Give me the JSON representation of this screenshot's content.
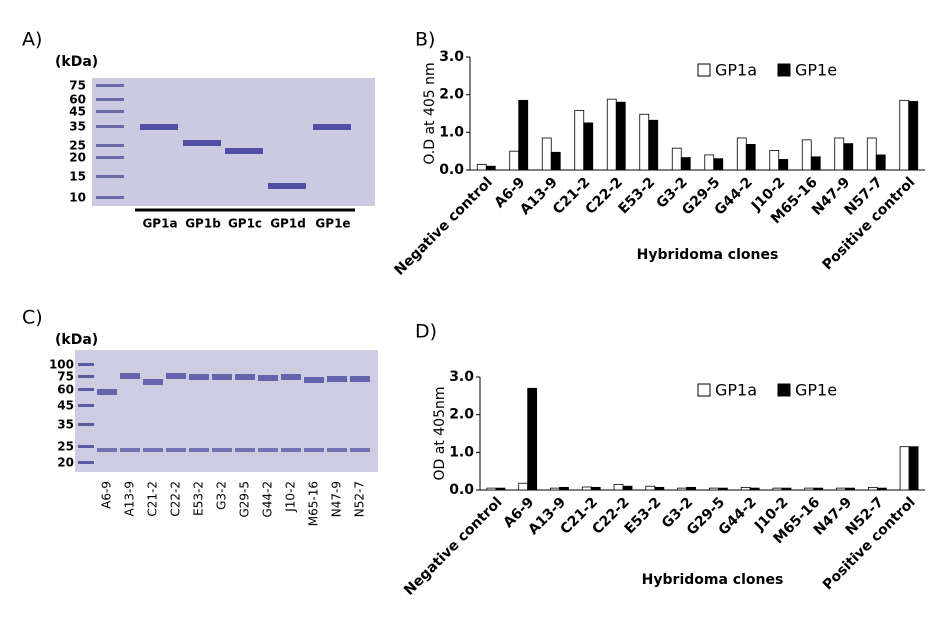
{
  "chart_data": [
    {
      "type": "bar",
      "panel_label": "B)",
      "ylabel": "O.D at 405 nm",
      "xlabel": "Hybridoma clones",
      "categories": [
        "Negative control",
        "A6-9",
        "A13-9",
        "C21-2",
        "C22-2",
        "E53-2",
        "G3-2",
        "G29-5",
        "G44-2",
        "J10-2",
        "M65-16",
        "N47-9",
        "N57-7",
        "Positive control"
      ],
      "series": [
        {
          "name": "GP1a",
          "color": "#ffffff",
          "values": [
            0.15,
            0.5,
            0.85,
            1.58,
            1.88,
            1.48,
            0.58,
            0.4,
            0.85,
            0.52,
            0.8,
            0.85,
            0.85,
            1.85
          ]
        },
        {
          "name": "GP1e",
          "color": "#000000",
          "values": [
            0.1,
            1.85,
            0.47,
            1.25,
            1.8,
            1.32,
            0.33,
            0.3,
            0.68,
            0.28,
            0.35,
            0.7,
            0.4,
            1.82
          ]
        }
      ],
      "ylim": [
        0,
        3
      ],
      "yticks": [
        {
          "value": 0,
          "label": "0.0"
        },
        {
          "value": 1,
          "label": "1.0"
        },
        {
          "value": 2,
          "label": "2.0"
        },
        {
          "value": 3,
          "label": "3.0"
        }
      ]
    },
    {
      "type": "bar",
      "panel_label": "D)",
      "ylabel": "OD at 405nm",
      "xlabel": "Hybridoma clones",
      "categories": [
        "Negative control",
        "A6-9",
        "A13-9",
        "C21-2",
        "C22-2",
        "E53-2",
        "G3-2",
        "G29-5",
        "G44-2",
        "J10-2",
        "M65-16",
        "N47-9",
        "N52-7",
        "Positive control"
      ],
      "series": [
        {
          "name": "GP1a",
          "color": "#ffffff",
          "values": [
            0.05,
            0.18,
            0.05,
            0.08,
            0.15,
            0.1,
            0.05,
            0.05,
            0.07,
            0.05,
            0.05,
            0.05,
            0.07,
            1.15
          ]
        },
        {
          "name": "GP1e",
          "color": "#000000",
          "values": [
            0.05,
            2.7,
            0.07,
            0.07,
            0.1,
            0.07,
            0.07,
            0.05,
            0.05,
            0.05,
            0.05,
            0.05,
            0.05,
            1.15
          ]
        }
      ],
      "ylim": [
        0,
        3
      ],
      "yticks": [
        {
          "value": 0,
          "label": "0.0"
        },
        {
          "value": 1,
          "label": "1.0"
        },
        {
          "value": 2,
          "label": "2.0"
        },
        {
          "value": 3,
          "label": "3.0"
        }
      ]
    }
  ],
  "gel_a": {
    "panel_label": "A)",
    "unit": "(kDa)",
    "markers": [
      "75",
      "60",
      "45",
      "35",
      "25",
      "20",
      "15",
      "10"
    ],
    "lanes": [
      "GP1a",
      "GP1b",
      "GP1c",
      "GP1d",
      "GP1e"
    ]
  },
  "gel_c": {
    "panel_label": "C)",
    "unit": "(kDa)",
    "markers": [
      "100",
      "75",
      "60",
      "45",
      "35",
      "25",
      "20"
    ],
    "lanes": [
      "A6-9",
      "A13-9",
      "C21-2",
      "C22-2",
      "E53-2",
      "G3-2",
      "G29-5",
      "G44-2",
      "J10-2",
      "M65-16",
      "N47-9",
      "N52-7"
    ]
  }
}
